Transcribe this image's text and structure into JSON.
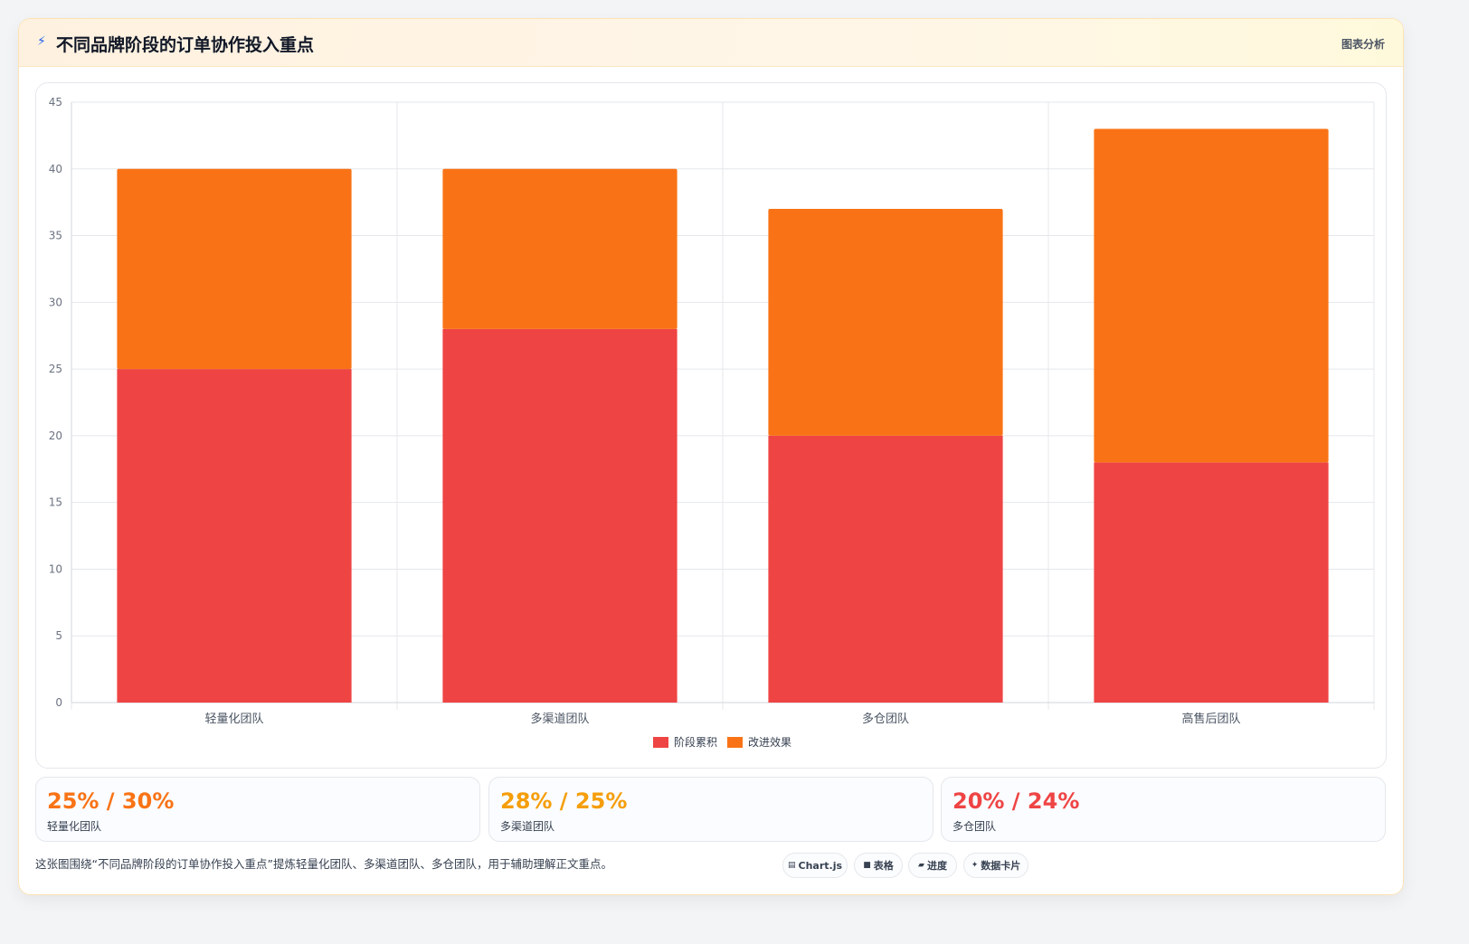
{
  "header": {
    "title": "不同品牌阶段的订单协作投入重点",
    "tag": "图表分析",
    "icon": "bolt-icon"
  },
  "colors": {
    "accent_red": "#ef4444",
    "accent_orange": "#f97316",
    "accent_amber": "#f59e0b"
  },
  "chart_data": {
    "type": "bar",
    "stacked": true,
    "categories": [
      "轻量化团队",
      "多渠道团队",
      "多仓团队",
      "高售后团队"
    ],
    "series": [
      {
        "name": "阶段累积",
        "color": "#ef4444",
        "values": [
          25,
          28,
          20,
          18
        ]
      },
      {
        "name": "改进效果",
        "color": "#f97316",
        "values": [
          15,
          12,
          17,
          25
        ]
      }
    ],
    "ylim": [
      0,
      45
    ],
    "yticks": [
      0,
      5,
      10,
      15,
      20,
      25,
      30,
      35,
      40,
      45
    ],
    "grid": true,
    "legend": "bottom"
  },
  "stats": [
    {
      "value": "25% / 30%",
      "label": "轻量化团队",
      "color": "#f97316"
    },
    {
      "value": "28% / 25%",
      "label": "多渠道团队",
      "color": "#f59e0b"
    },
    {
      "value": "20% / 24%",
      "label": "多仓团队",
      "color": "#ef4444"
    }
  ],
  "caption": "这张图围绕“不同品牌阶段的订单协作投入重点”提炼轻量化团队、多渠道团队、多仓团队，用于辅助理解正文重点。",
  "chips": [
    {
      "label": "Chart.js",
      "icon": "chart-icon",
      "glyph": "▤"
    },
    {
      "label": "表格",
      "icon": "table-icon",
      "glyph": "■"
    },
    {
      "label": "进度",
      "icon": "progress-icon",
      "glyph": "▰"
    },
    {
      "label": "数据卡片",
      "icon": "card-icon",
      "glyph": "✦"
    }
  ]
}
